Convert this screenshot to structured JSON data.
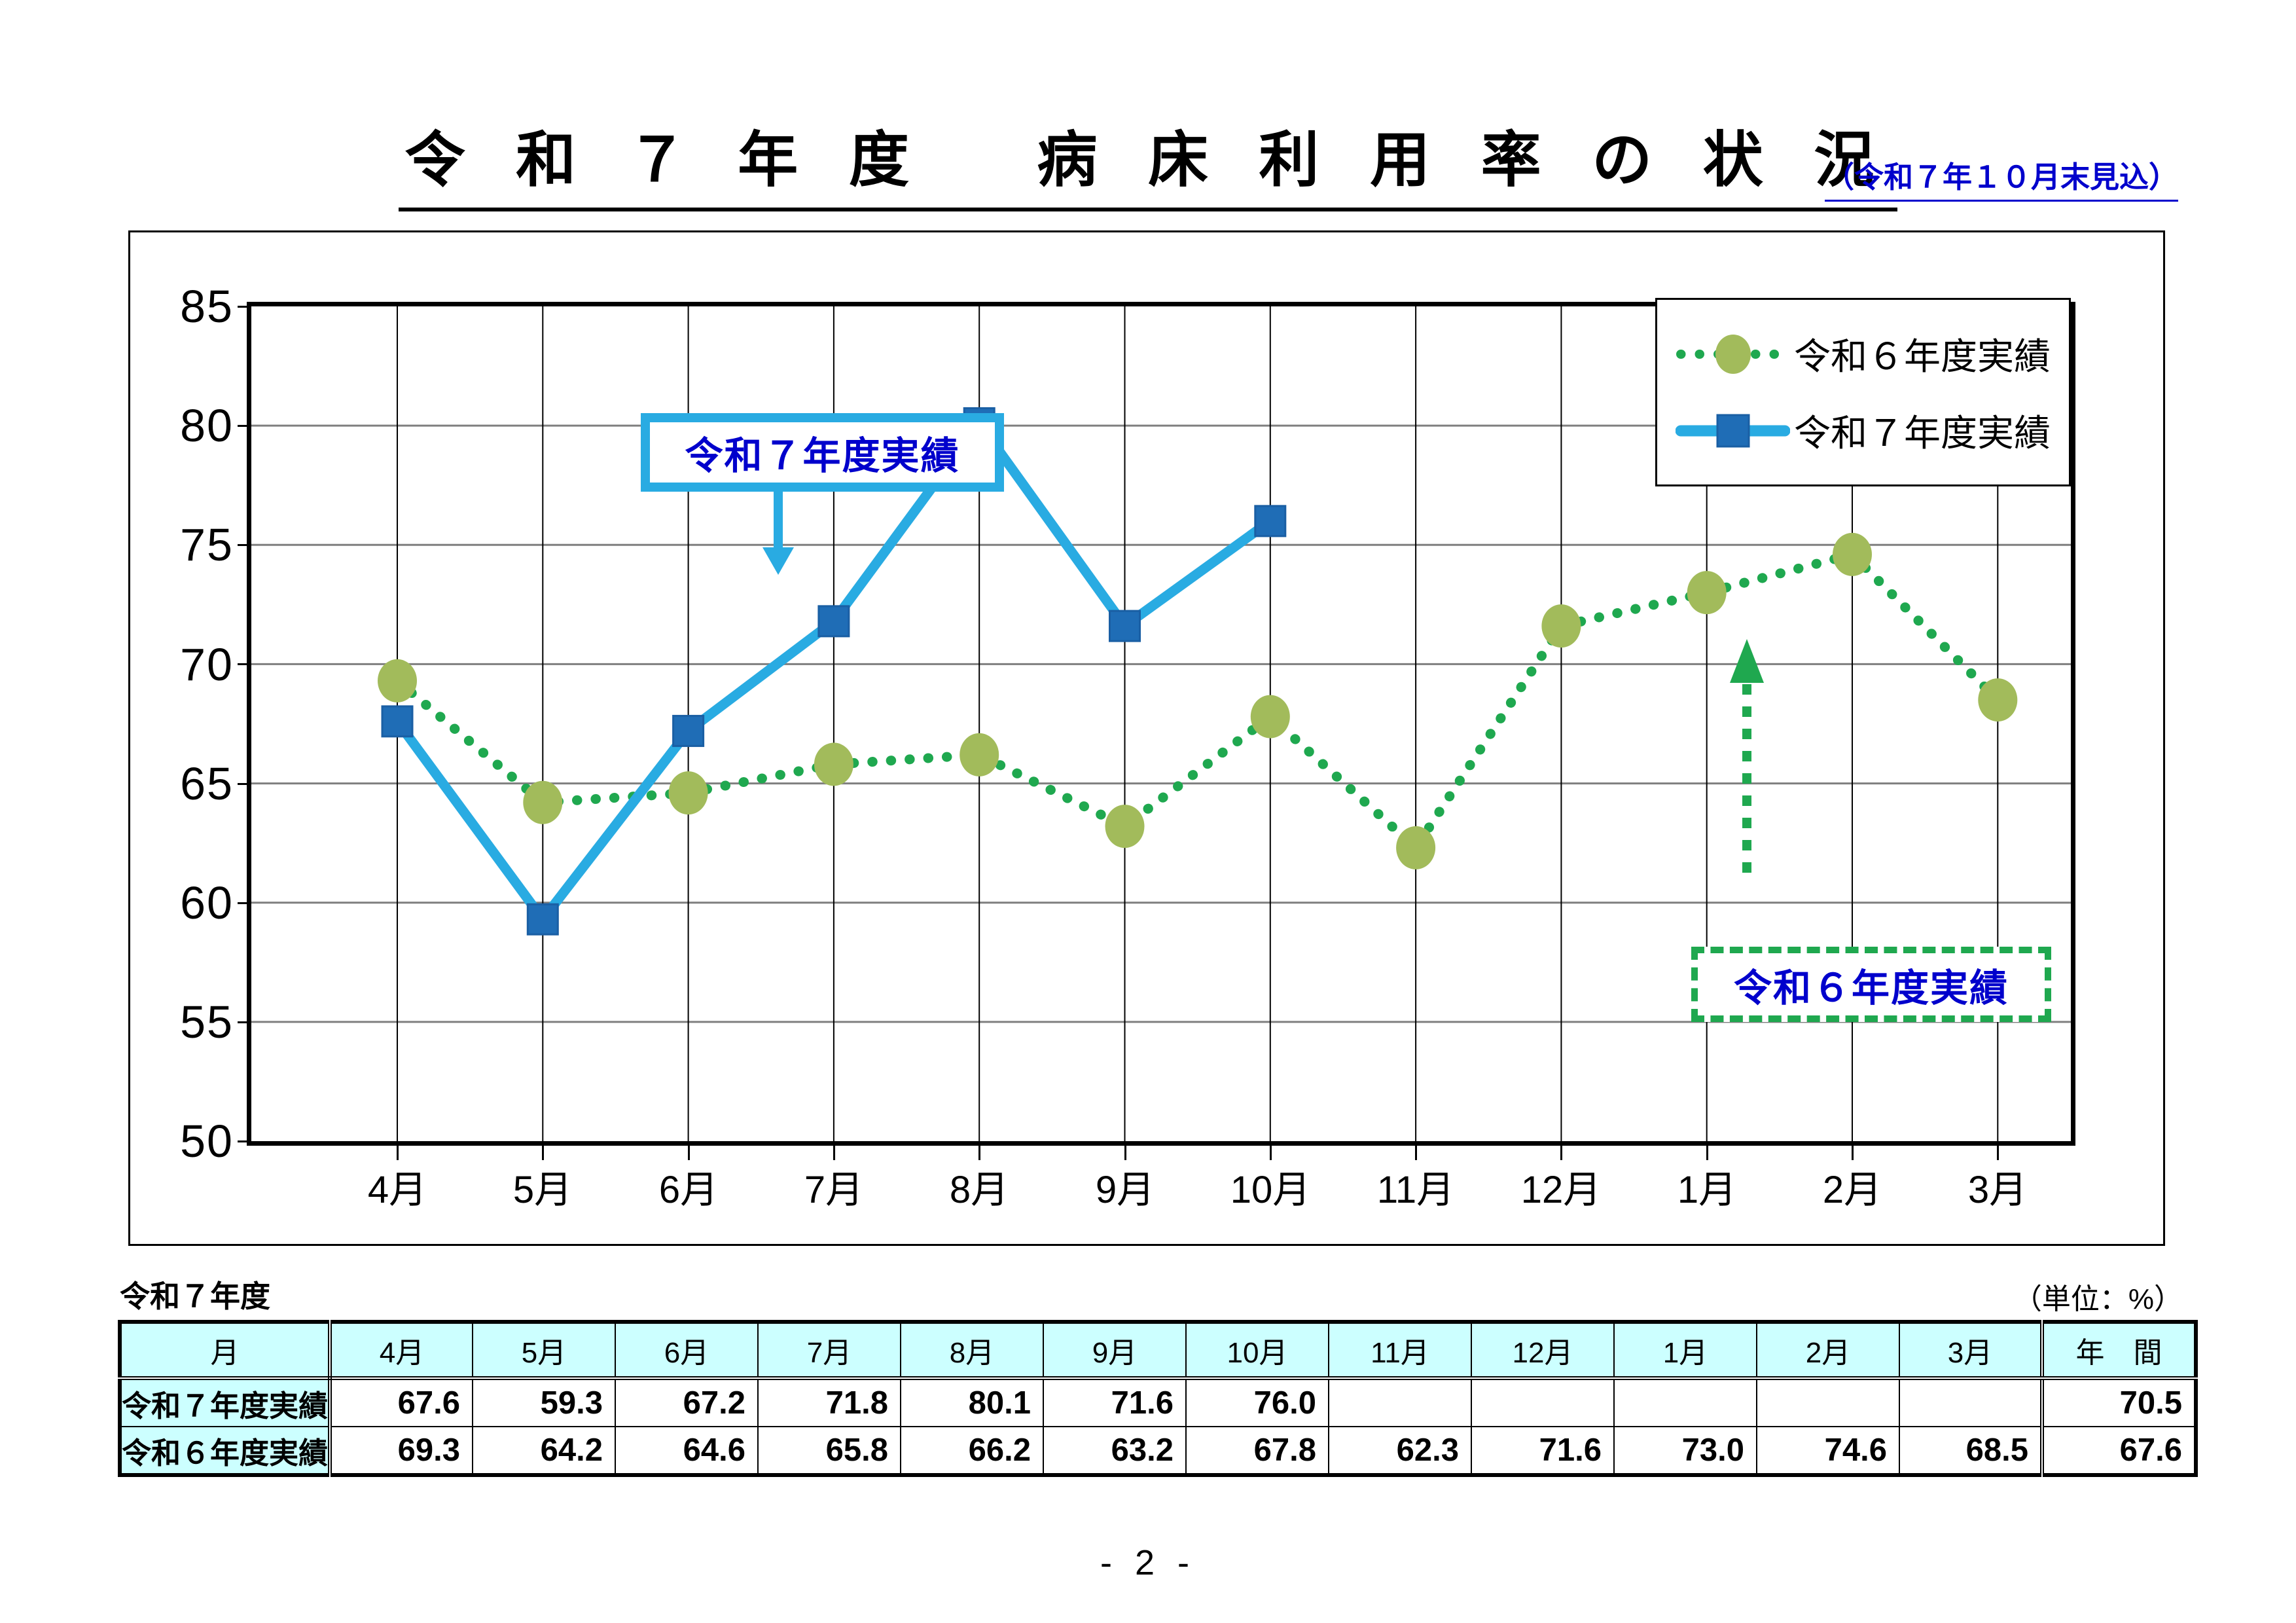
{
  "title": {
    "main": "令 和 ７ 年 度　 病 床 利 用 率 の 状 況",
    "note": "（令和７年１０月末見込）"
  },
  "chart": {
    "y_ticks": [
      "85",
      "80",
      "75",
      "70",
      "65",
      "60",
      "55",
      "50"
    ],
    "x_labels": [
      "4月",
      "5月",
      "6月",
      "7月",
      "8月",
      "9月",
      "10月",
      "11月",
      "12月",
      "1月",
      "2月",
      "3月"
    ],
    "legend": {
      "r6_label": "令和６年度実績",
      "r7_label": "令和７年度実績"
    },
    "callouts": {
      "r7": "令和７年度実績",
      "r6": "令和６年度実績"
    },
    "colors": {
      "r7_line": "#29ABE2",
      "r7_marker": "#1F6DB6",
      "r7_marker_edge": "#1A5FA4",
      "r6_dot": "#1FA84F",
      "r6_marker": "#A2BB5B",
      "grid_gray": "#7F7F7F",
      "grid_black": "#000000",
      "callout_text": "#0000CC"
    }
  },
  "chart_data": {
    "type": "line",
    "title": "令和７年度　病床利用率の状況",
    "categories": [
      "4月",
      "5月",
      "6月",
      "7月",
      "8月",
      "9月",
      "10月",
      "11月",
      "12月",
      "1月",
      "2月",
      "3月"
    ],
    "series": [
      {
        "name": "令和６年度実績",
        "style": "dotted-green-circle",
        "values": [
          69.3,
          64.2,
          64.6,
          65.8,
          66.2,
          63.2,
          67.8,
          62.3,
          71.6,
          73.0,
          74.6,
          68.5
        ]
      },
      {
        "name": "令和７年度実績",
        "style": "solid-blue-square",
        "values": [
          67.6,
          59.3,
          67.2,
          71.8,
          80.1,
          71.6,
          76.0
        ]
      }
    ],
    "ylabel": "",
    "xlabel": "",
    "ylim": [
      50,
      85
    ],
    "y_step": 5,
    "grid": true,
    "legend_position": "top-right",
    "unit": "%"
  },
  "table": {
    "caption_left": "令和７年度",
    "caption_right": "（単位：%）",
    "header": [
      "月",
      "4月",
      "5月",
      "6月",
      "7月",
      "8月",
      "9月",
      "10月",
      "11月",
      "12月",
      "1月",
      "2月",
      "3月",
      "年　間"
    ],
    "rows": [
      {
        "label": "令和７年度実績",
        "values": [
          "67.6",
          "59.3",
          "67.2",
          "71.8",
          "80.1",
          "71.6",
          "76.0",
          "",
          "",
          "",
          "",
          "",
          "70.5"
        ]
      },
      {
        "label": "令和６年度実績",
        "values": [
          "69.3",
          "64.2",
          "64.6",
          "65.8",
          "66.2",
          "63.2",
          "67.8",
          "62.3",
          "71.6",
          "73.0",
          "74.6",
          "68.5",
          "67.6"
        ]
      }
    ]
  },
  "footer": {
    "page_number": "- 2 -"
  }
}
